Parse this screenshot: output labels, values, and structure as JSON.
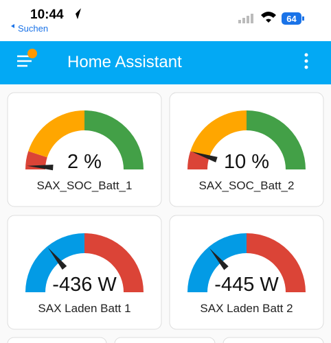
{
  "status_bar": {
    "time": "10:44",
    "back": "Suchen",
    "battery": "64"
  },
  "header": {
    "title": "Home Assistant"
  },
  "gauges": [
    {
      "name": "SAX_SOC_Batt_1",
      "value": 2,
      "unit": "%",
      "min": 0,
      "max": 100,
      "segments": [
        {
          "from": 0,
          "color": "#db4437"
        },
        {
          "from": 10,
          "color": "#ffa600"
        },
        {
          "from": 50,
          "color": "#43a047"
        }
      ]
    },
    {
      "name": "SAX_SOC_Batt_2",
      "value": 10,
      "unit": "%",
      "min": 0,
      "max": 100,
      "segments": [
        {
          "from": 0,
          "color": "#db4437"
        },
        {
          "from": 10,
          "color": "#ffa600"
        },
        {
          "from": 50,
          "color": "#43a047"
        }
      ]
    },
    {
      "name": "SAX Laden Batt 1",
      "value": -436,
      "unit": "W",
      "min": -1000,
      "max": 1000,
      "segments": [
        {
          "from": -1000,
          "color": "#039be5"
        },
        {
          "from": 0,
          "color": "#db4437"
        }
      ]
    },
    {
      "name": "SAX Laden Batt 2",
      "value": -445,
      "unit": "W",
      "min": -1000,
      "max": 1000,
      "segments": [
        {
          "from": -1000,
          "color": "#039be5"
        },
        {
          "from": 0,
          "color": "#db4437"
        }
      ]
    }
  ]
}
